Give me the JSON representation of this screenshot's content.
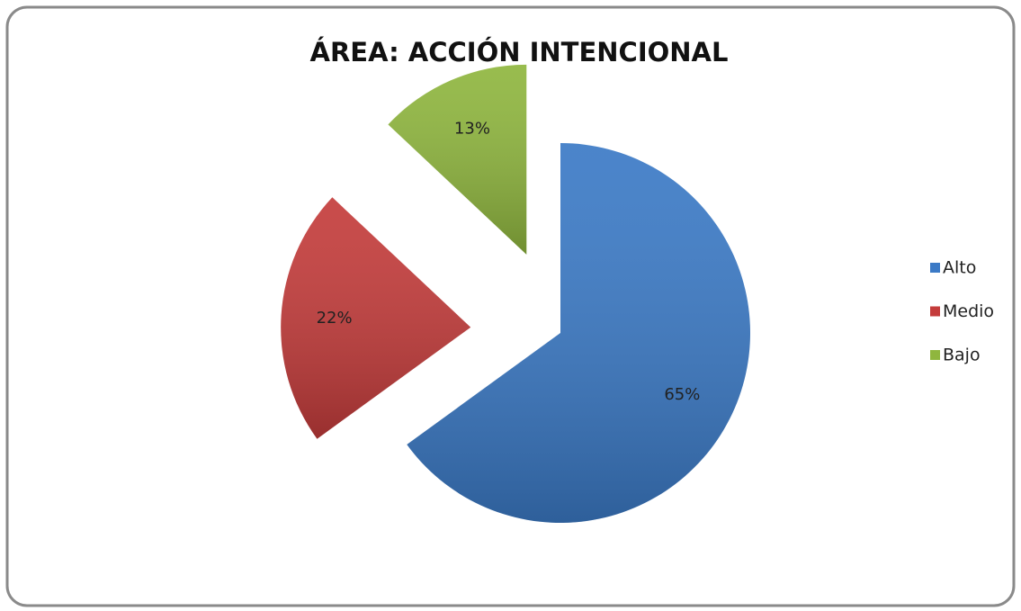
{
  "chart_data": {
    "type": "pie",
    "title": "ÁREA: ACCIÓN INTENCIONAL",
    "categories": [
      "Alto",
      "Medio",
      "Bajo"
    ],
    "values": [
      65,
      22,
      13
    ],
    "value_labels": [
      "65%",
      "22%",
      "13%"
    ],
    "colors": [
      "#3b7ac6",
      "#c43c3b",
      "#8fb63e"
    ],
    "legend": "right"
  }
}
